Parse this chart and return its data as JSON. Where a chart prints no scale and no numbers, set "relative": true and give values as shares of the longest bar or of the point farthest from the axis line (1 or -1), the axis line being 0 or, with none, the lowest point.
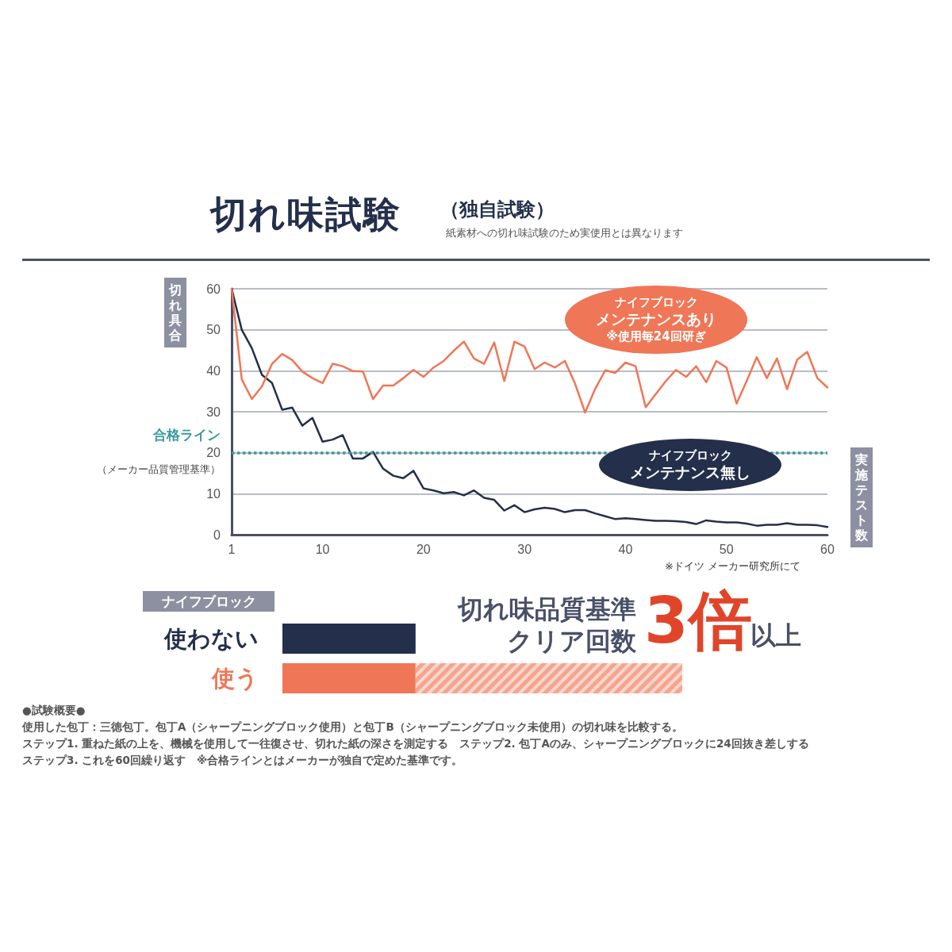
{
  "chart_data": [
    {
      "type": "line",
      "title": "切れ味試験",
      "subtitle": "（独自試験）",
      "ylabel": "切れ具合",
      "xlabel": "実施テスト数",
      "annotations": [
        "紙素材への切れ味試験のため実使用とは異なります",
        "ナイフブロック",
        "メンテナンスあり",
        "※使用毎24回研ぎ",
        "ナイフブロック",
        "メンテナンス無し",
        "※ドイツ メーカー研究所にて",
        "（メーカー品質管理基準）"
      ],
      "x": [
        1,
        2,
        3,
        4,
        5,
        6,
        7,
        8,
        9,
        10,
        11,
        12,
        13,
        14,
        15,
        16,
        17,
        18,
        19,
        20,
        21,
        22,
        23,
        24,
        25,
        26,
        27,
        28,
        29,
        30,
        31,
        32,
        33,
        34,
        35,
        36,
        37,
        38,
        39,
        40,
        41,
        42,
        43,
        44,
        45,
        46,
        47,
        48,
        49,
        50,
        51,
        52,
        53,
        54,
        55,
        56,
        57,
        58,
        59,
        60
      ],
      "series": [
        {
          "color": "#232f4b",
          "values": [
            60,
            50,
            45.5,
            39,
            37,
            30.5,
            31,
            26.6,
            28.5,
            22.7,
            23.2,
            24.3,
            18.6,
            18.6,
            20.2,
            16.1,
            14.4,
            13.8,
            15.6,
            11.3,
            10.8,
            10.1,
            10.4,
            9.6,
            10.8,
            9,
            8.5,
            5.9,
            7.2,
            5.5,
            6.2,
            6.6,
            6.3,
            5.5,
            6,
            6,
            5.2,
            4.5,
            3.8,
            4,
            3.8,
            3.6,
            3.4,
            3.4,
            3.3,
            3.1,
            2.6,
            3.5,
            3.2,
            3,
            3,
            2.7,
            2.2,
            2.4,
            2.4,
            2.8,
            2.4,
            2.4,
            2.3,
            1.9
          ]
        },
        {
          "color": "#ef7656",
          "values": [
            60,
            37.9,
            33.1,
            36.2,
            41.7,
            44.1,
            42.6,
            39.8,
            38.2,
            37,
            41.7,
            41.1,
            39.9,
            39.8,
            33.1,
            36.4,
            36.4,
            38.2,
            40.2,
            38.5,
            40.8,
            42.4,
            44.9,
            47.1,
            43,
            41.7,
            46.9,
            37.5,
            47.1,
            45.9,
            40.4,
            42,
            40.8,
            42.4,
            36.9,
            29.8,
            35.6,
            40.1,
            39.5,
            42,
            41.1,
            31.1,
            34.3,
            37.5,
            40.2,
            38.5,
            41.1,
            37.2,
            42.4,
            40.8,
            32,
            37.5,
            43.3,
            38.2,
            43,
            35.5,
            42.7,
            44.6,
            38.2,
            35.9
          ]
        }
      ],
      "xlim": [
        1,
        60
      ],
      "xticks": [
        1,
        10,
        20,
        30,
        40,
        50,
        60
      ],
      "ylim": [
        0,
        60
      ],
      "yticks": [
        0,
        10,
        20,
        30,
        40,
        50,
        60
      ],
      "grid": "y",
      "marker": "none",
      "line_style": "solid",
      "ref_lines": [
        {
          "axis": "y",
          "value": 20,
          "label": "合格ライン",
          "color": "#3a9a9a",
          "line_style": "dotted"
        }
      ]
    },
    {
      "type": "bar",
      "orientation": "horizontal",
      "relative": true,
      "stacked": true,
      "ylabel": "ナイフブロック",
      "categories": [
        "使わない",
        "使う"
      ],
      "series": [
        {
          "colors": [
            "#232f4b",
            "#ef7656"
          ],
          "values": [
            0.333,
            0.333
          ]
        },
        {
          "color": "#f4a58f",
          "values": [
            null,
            0.667
          ]
        }
      ],
      "annotations": [
        "切れ味品質基準",
        "クリア回数",
        "3倍",
        "以上",
        "●試験概要●",
        "使用した包丁：三徳包丁。包丁A（シャープニングブロック使用）と包丁B（シャープニングブロック未使用）の切れ味を比較する。",
        "ステップ1. 重ねた紙の上を、機械を使用して一往復させ、切れた紙の深さを測定する　ステップ2. 包丁Aのみ、シャープニングブロックに24回抜き差しする",
        "ステップ3. これを60回繰り返す　※合格ラインとはメーカーが独自で定めた基準です。"
      ],
      "tick_labels": "y"
    }
  ]
}
